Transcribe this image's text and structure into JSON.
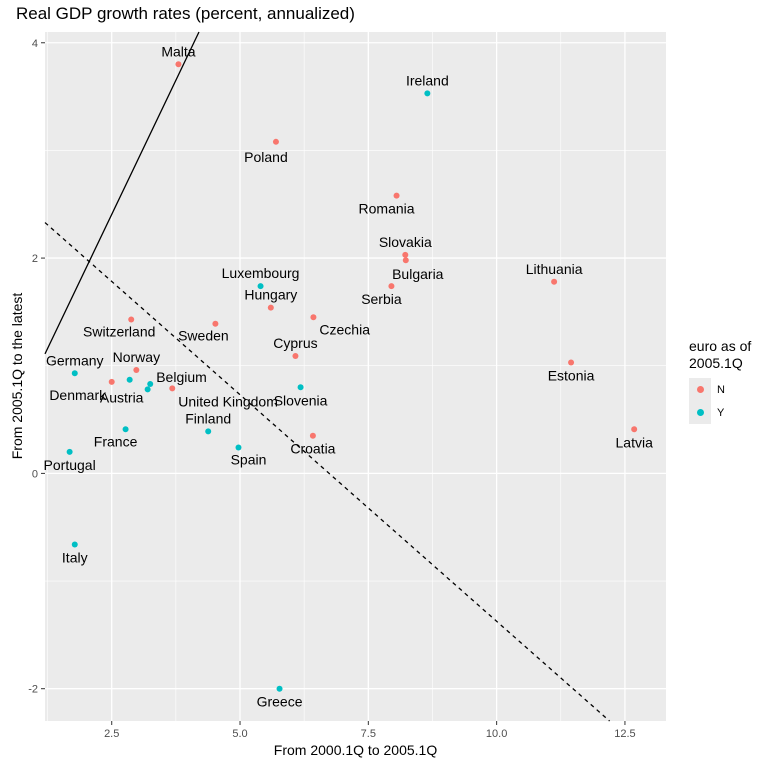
{
  "chart_data": {
    "type": "scatter",
    "title": "Real GDP growth rates (percent, annualized)",
    "xlabel": "From 2000.1Q to 2005.1Q",
    "ylabel": "From 2005.1Q to the latest",
    "xlim": [
      1.2,
      13.3
    ],
    "ylim": [
      -2.3,
      4.1
    ],
    "x_ticks": [
      2.5,
      5.0,
      7.5,
      10.0,
      12.5
    ],
    "x_tick_labels": [
      "2.5",
      "5.0",
      "7.5",
      "10.0",
      "12.5"
    ],
    "y_ticks": [
      -2,
      0,
      2,
      4
    ],
    "y_tick_labels": [
      "-2",
      "0",
      "2",
      "4"
    ],
    "grid": true,
    "legend": {
      "title": "euro as of\n2005.1Q",
      "position": "right",
      "entries": [
        {
          "label": "N",
          "color": "#F8766D"
        },
        {
          "label": "Y",
          "color": "#00BFC4"
        }
      ]
    },
    "points": [
      {
        "label": "Malta",
        "x": 3.8,
        "y": 3.8,
        "group": "N"
      },
      {
        "label": "Ireland",
        "x": 8.65,
        "y": 3.53,
        "group": "Y"
      },
      {
        "label": "Poland",
        "x": 5.7,
        "y": 3.08,
        "group": "N"
      },
      {
        "label": "Romania",
        "x": 8.05,
        "y": 2.58,
        "group": "N"
      },
      {
        "label": "Slovakia",
        "x": 8.22,
        "y": 2.03,
        "group": "N"
      },
      {
        "label": "Bulgaria",
        "x": 8.23,
        "y": 1.98,
        "group": "N"
      },
      {
        "label": "Lithuania",
        "x": 11.12,
        "y": 1.78,
        "group": "N"
      },
      {
        "label": "Serbia",
        "x": 7.95,
        "y": 1.74,
        "group": "N"
      },
      {
        "label": "Luxembourg",
        "x": 5.4,
        "y": 1.74,
        "group": "Y"
      },
      {
        "label": "Hungary",
        "x": 5.6,
        "y": 1.54,
        "group": "N"
      },
      {
        "label": "Czechia",
        "x": 6.43,
        "y": 1.45,
        "group": "N"
      },
      {
        "label": "Switzerland",
        "x": 2.88,
        "y": 1.43,
        "group": "N"
      },
      {
        "label": "Sweden",
        "x": 4.52,
        "y": 1.39,
        "group": "N"
      },
      {
        "label": "Cyprus",
        "x": 6.08,
        "y": 1.09,
        "group": "N"
      },
      {
        "label": "Estonia",
        "x": 11.45,
        "y": 1.03,
        "group": "N"
      },
      {
        "label": "Norway",
        "x": 2.98,
        "y": 0.96,
        "group": "N"
      },
      {
        "label": "Germany",
        "x": 1.78,
        "y": 0.93,
        "group": "Y"
      },
      {
        "label": "Denmark",
        "x": 2.5,
        "y": 0.85,
        "group": "N"
      },
      {
        "label": "Austria",
        "x": 2.85,
        "y": 0.87,
        "group": "Y"
      },
      {
        "label": "Belgium",
        "x": 3.25,
        "y": 0.83,
        "group": "Y"
      },
      {
        "label": "United Kingdom",
        "x": 3.68,
        "y": 0.79,
        "group": "N"
      },
      {
        "label": "Slovenia",
        "x": 6.18,
        "y": 0.8,
        "group": "Y"
      },
      {
        "label": "Austria",
        "x": 3.2,
        "y": 0.78,
        "group": "Y"
      },
      {
        "label": "France",
        "x": 2.77,
        "y": 0.41,
        "group": "Y"
      },
      {
        "label": "Finland",
        "x": 4.38,
        "y": 0.39,
        "group": "Y"
      },
      {
        "label": "Latvia",
        "x": 12.68,
        "y": 0.41,
        "group": "N"
      },
      {
        "label": "Croatia",
        "x": 6.42,
        "y": 0.35,
        "group": "N"
      },
      {
        "label": "Spain",
        "x": 4.97,
        "y": 0.24,
        "group": "Y"
      },
      {
        "label": "Portugal",
        "x": 1.68,
        "y": 0.2,
        "group": "Y"
      },
      {
        "label": "Italy",
        "x": 1.78,
        "y": -0.66,
        "group": "Y"
      },
      {
        "label": "Greece",
        "x": 5.77,
        "y": -2.0,
        "group": "Y"
      }
    ],
    "lines": [
      {
        "name": "solid",
        "style": "solid",
        "x1": 1.2,
        "y1": 1.11,
        "x2": 4.2,
        "y2": 4.1
      },
      {
        "name": "dashed",
        "style": "dashed",
        "x1": 1.2,
        "y1": 2.33,
        "x2": 12.2,
        "y2": -2.3
      }
    ]
  }
}
